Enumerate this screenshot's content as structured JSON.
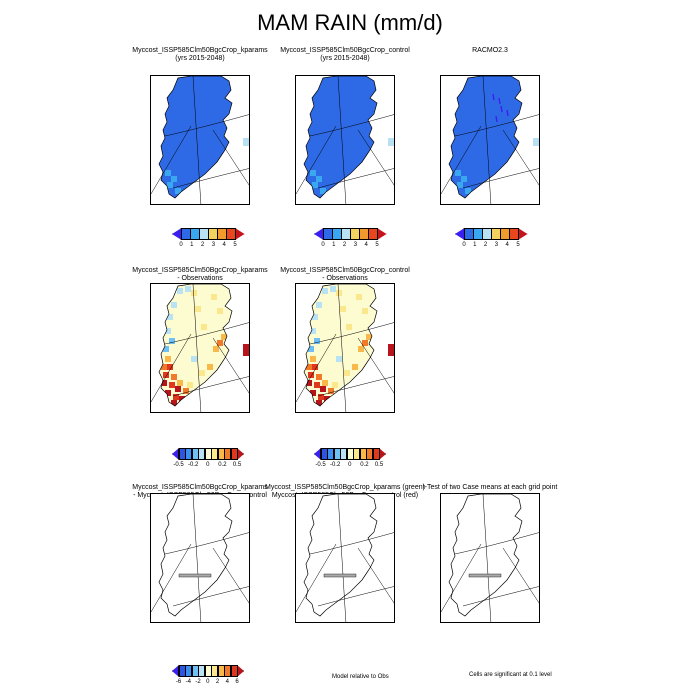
{
  "title": "MAM RAIN (mm/d)",
  "rows": [
    {
      "panels": [
        {
          "title": "Myccost_ISSP585Clm50BgcCrop_kparams",
          "subtitle": "(yrs 2015-2048)"
        },
        {
          "title": "Myccost_ISSP585Clm50BgcCrop_control",
          "subtitle": "(yrs 2015-2048)"
        },
        {
          "title": "RACMO2.3",
          "subtitle": ""
        }
      ],
      "colorbar": {
        "colors": [
          "#3b1ff0",
          "#2f6ae6",
          "#3aa8f0",
          "#b8e2f3",
          "#f3d360",
          "#f39a2e",
          "#e8461f",
          "#c4141c"
        ],
        "labels": [
          "0",
          "1",
          "2",
          "3",
          "4",
          "5"
        ]
      }
    },
    {
      "panels": [
        {
          "title": "Myccost_ISSP585Clm50BgcCrop_kparams",
          "subtitle": "- Observations"
        },
        {
          "title": "Myccost_ISSP585Clm50BgcCrop_control",
          "subtitle": "- Observations"
        }
      ],
      "colorbar": {
        "colors": [
          "#3b1ff0",
          "#2e55e0",
          "#3b8ff0",
          "#6fc0f5",
          "#b9e3f5",
          "#fdfbd0",
          "#fbe88c",
          "#f8b94a",
          "#f07a2a",
          "#e0381c",
          "#b8141c"
        ],
        "labels": [
          "-0.5",
          "-0.2",
          "0",
          "0.2",
          "0.5"
        ]
      }
    },
    {
      "panels": [
        {
          "title": "Myccost_ISSP585Clm50BgcCrop_kparams",
          "subtitle": "- Myccost_ISSP585Clm50BgcCrop_control"
        },
        {
          "title": "Myccost_ISSP585Clm50BgcCrop_kparams (green)",
          "subtitle": "Myccost_ISSP585Clm50BgcCrop_control (red)"
        },
        {
          "title": "t-Test of two Case means at each grid point",
          "subtitle": ""
        }
      ],
      "colorbar": {
        "colors": [
          "#3b1ff0",
          "#2e55e0",
          "#3b8ff0",
          "#6fc0f5",
          "#b9e3f5",
          "#fdfbd0",
          "#fbe88c",
          "#f8b94a",
          "#f07a2a",
          "#e0381c",
          "#b8141c"
        ],
        "labels": [
          "-6",
          "-4",
          "-2",
          "0",
          "2",
          "4",
          "6"
        ]
      },
      "notes": {
        "middle": "Model relative to Obs",
        "right": "Cells are significant at 0.1 level"
      }
    }
  ],
  "chart_data": [
    {
      "type": "heatmap",
      "title": "MAM RAIN (mm/d)",
      "panel": "Myccost_ISSP585Clm50BgcCrop_kparams (yrs 2015-2048)",
      "colorbar_levels": [
        0,
        1,
        2,
        3,
        4,
        5
      ],
      "dominant_value_range": [
        0,
        1
      ],
      "southern_coastal_value_range": [
        1,
        3
      ]
    },
    {
      "type": "heatmap",
      "panel": "Myccost_ISSP585Clm50BgcCrop_control (yrs 2015-2048)",
      "colorbar_levels": [
        0,
        1,
        2,
        3,
        4,
        5
      ],
      "dominant_value_range": [
        0,
        1
      ],
      "southern_coastal_value_range": [
        1,
        3
      ]
    },
    {
      "type": "heatmap",
      "panel": "RACMO2.3",
      "colorbar_levels": [
        0,
        1,
        2,
        3,
        4,
        5
      ],
      "dominant_value_range": [
        0,
        1
      ]
    },
    {
      "type": "heatmap",
      "panel": "Myccost_ISSP585Clm50BgcCrop_kparams - Observations",
      "colorbar_levels": [
        -0.5,
        -0.2,
        0,
        0.2,
        0.5
      ],
      "interior_value_range": [
        0,
        0.2
      ],
      "southwest_value_range": [
        0.5,
        1
      ],
      "northwest_coast_value_range": [
        -0.2,
        0
      ]
    },
    {
      "type": "heatmap",
      "panel": "Myccost_ISSP585Clm50BgcCrop_control - Observations",
      "colorbar_levels": [
        -0.5,
        -0.2,
        0,
        0.2,
        0.5
      ],
      "interior_value_range": [
        0,
        0.2
      ],
      "southwest_value_range": [
        0.5,
        1
      ],
      "northwest_coast_value_range": [
        -0.2,
        0
      ]
    },
    {
      "type": "heatmap",
      "panel": "Myccost_ISSP585Clm50BgcCrop_kparams - Myccost_ISSP585Clm50BgcCrop_control",
      "colorbar_levels": [
        -6,
        -4,
        -2,
        0,
        2,
        4,
        6
      ],
      "filled": false
    }
  ]
}
